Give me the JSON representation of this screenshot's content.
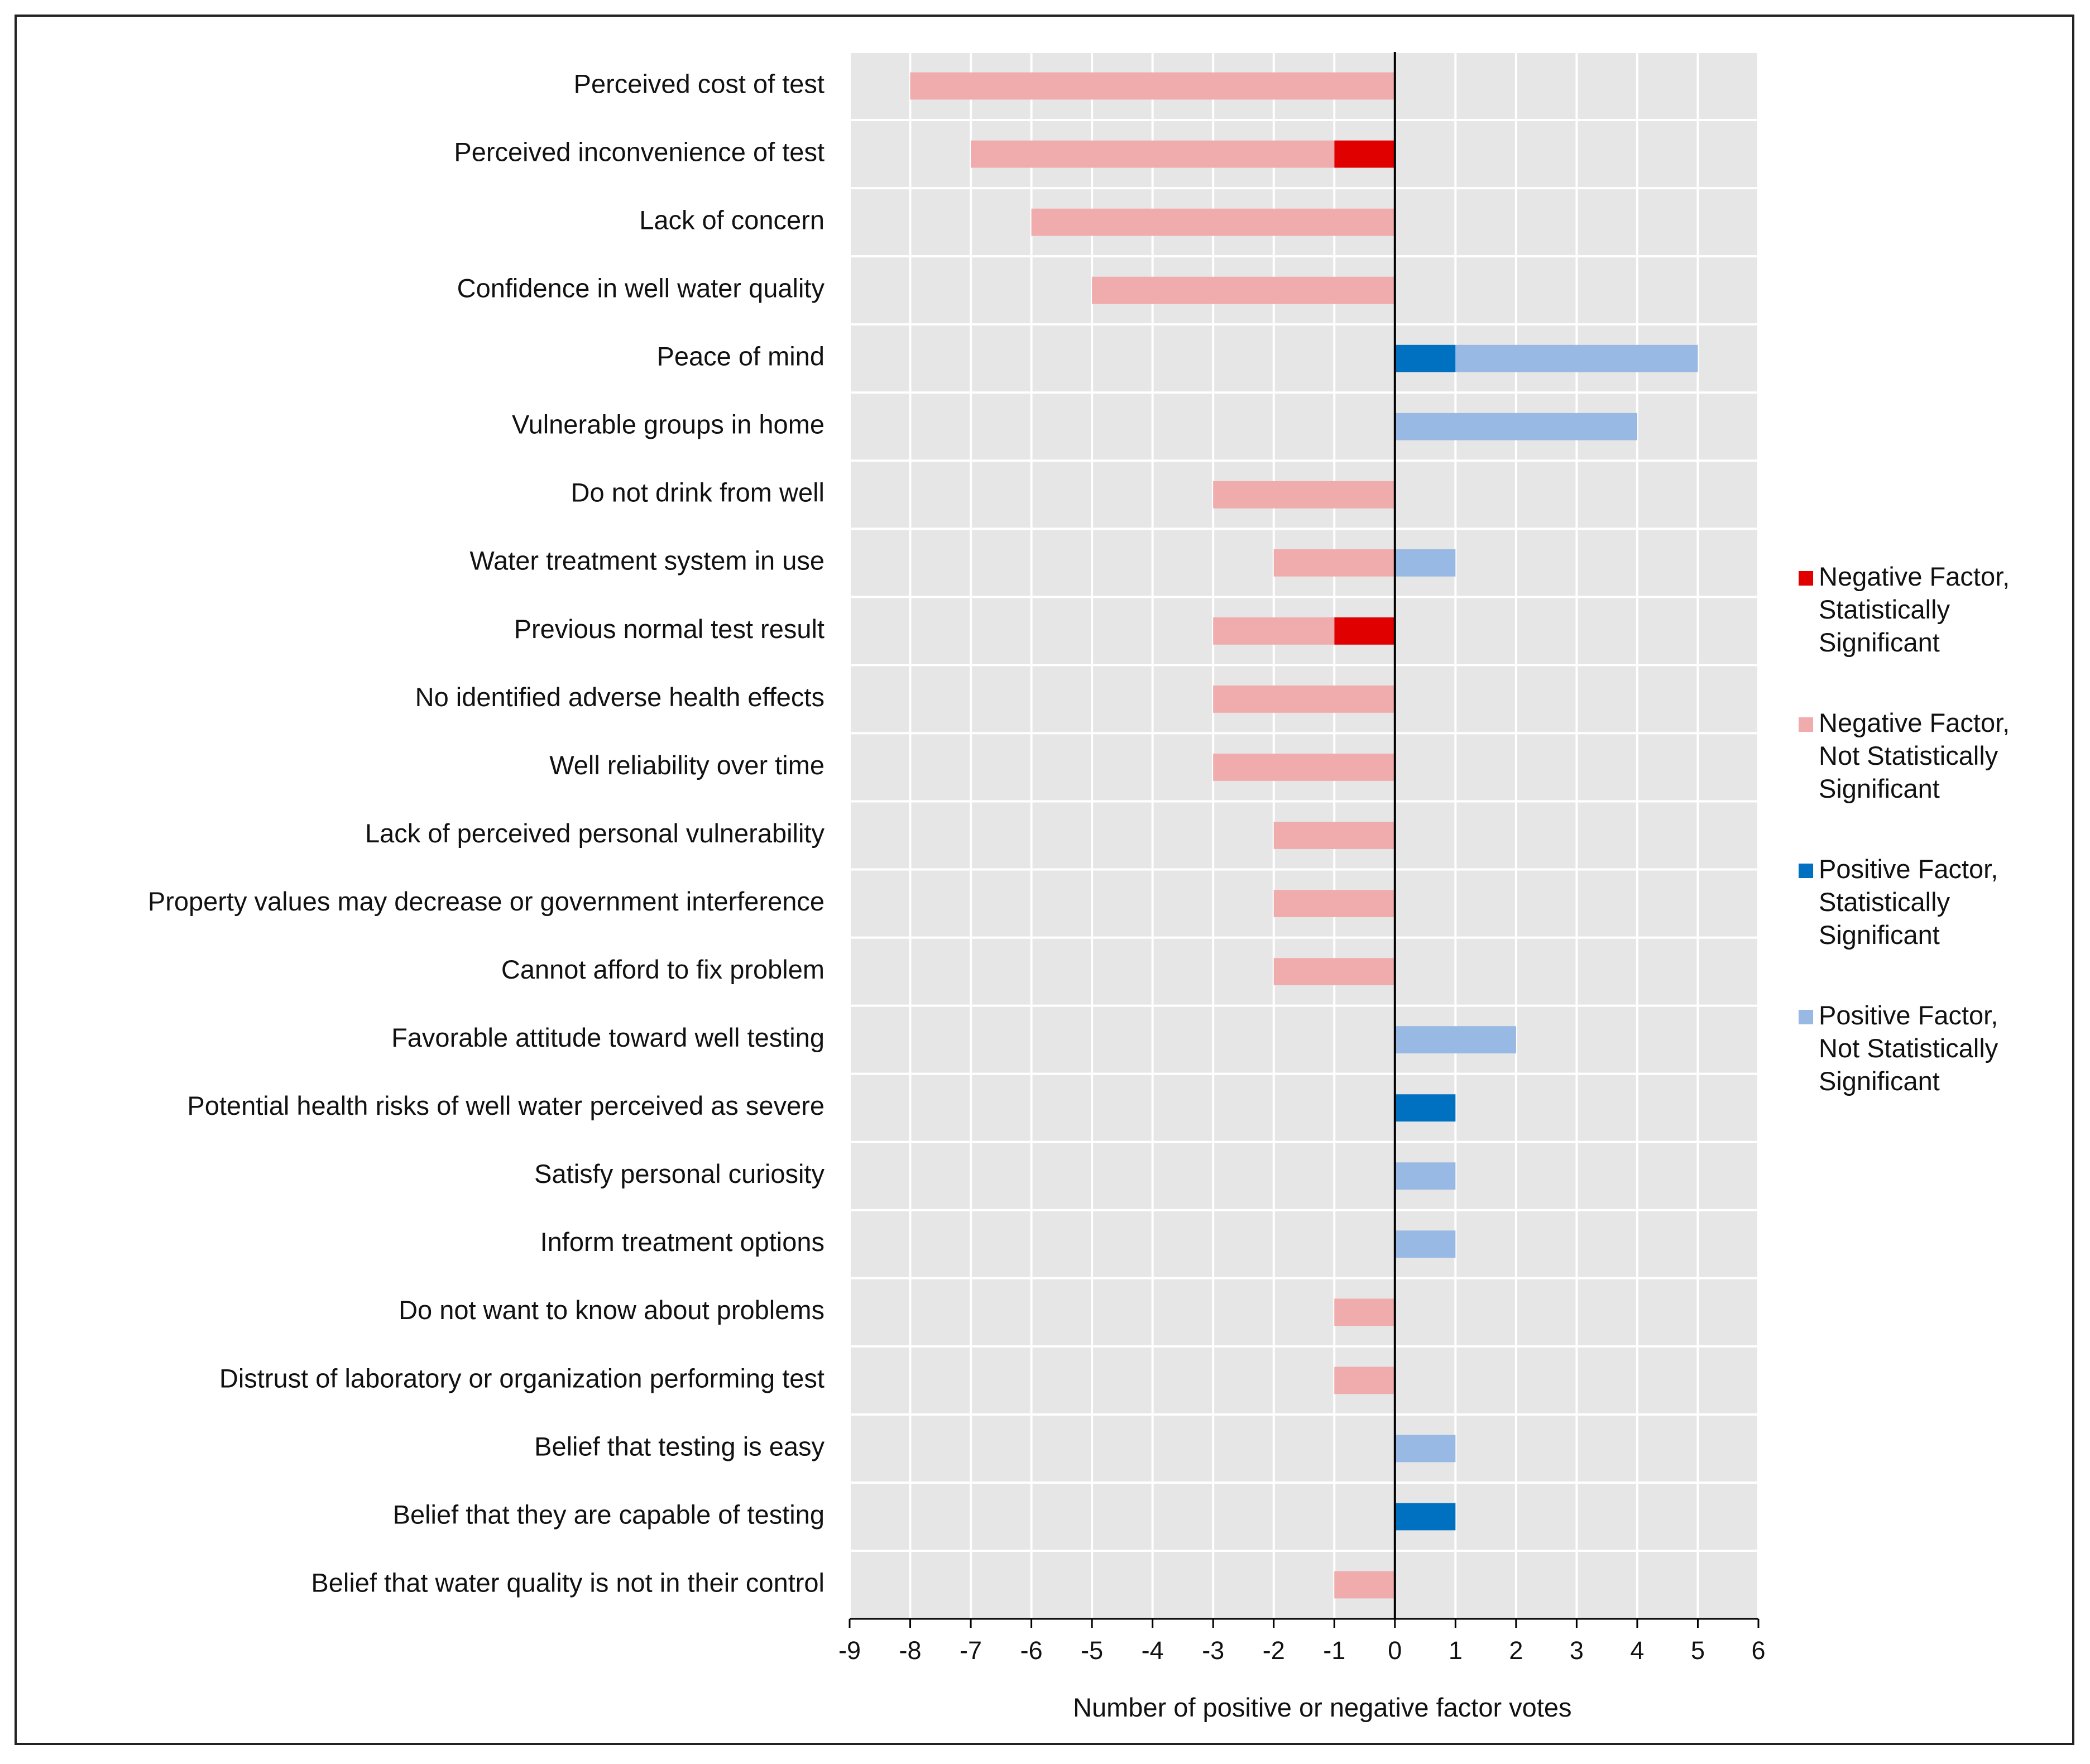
{
  "chart_data": {
    "type": "bar",
    "orientation": "horizontal",
    "stacked": true,
    "title": "",
    "xlabel": "Number of positive or negative factor votes",
    "ylabel": "",
    "xlim": [
      -9,
      6
    ],
    "xticks": [
      -9,
      -8,
      -7,
      -6,
      -5,
      -4,
      -3,
      -2,
      -1,
      0,
      1,
      2,
      3,
      4,
      5,
      6
    ],
    "grid": true,
    "legend_position": "right",
    "categories": [
      "Perceived cost of test",
      "Perceived inconvenience of test",
      "Lack of concern",
      "Confidence in well water quality",
      "Peace of mind",
      "Vulnerable groups in home",
      "Do not drink from well",
      "Water treatment system in use",
      "Previous normal test result",
      "No identified adverse health effects",
      "Well reliability over time",
      "Lack of perceived personal vulnerability",
      "Property values may decrease or government interference",
      "Cannot afford to fix problem",
      "Favorable attitude toward well testing",
      "Potential health risks of well water perceived as severe",
      "Satisfy personal curiosity",
      "Inform treatment options",
      "Do not want to know about problems",
      "Distrust of laboratory or organization performing test",
      "Belief that testing is easy",
      "Belief that they are capable of testing",
      "Belief that water quality is not in their control"
    ],
    "series": [
      {
        "name": "Negative Factor, Statistically Significant",
        "legend_lines": [
          "Negative Factor,",
          "Statistically",
          "Significant"
        ],
        "color": "#e00000",
        "values": [
          0,
          -1,
          0,
          0,
          0,
          0,
          0,
          0,
          -1,
          0,
          0,
          0,
          0,
          0,
          0,
          0,
          0,
          0,
          0,
          0,
          0,
          0,
          0
        ]
      },
      {
        "name": "Negative Factor, Not Statistically Significant",
        "legend_lines": [
          "Negative Factor,",
          "Not Statistically",
          "Significant"
        ],
        "color": "#f0acac",
        "values": [
          -8,
          -6,
          -6,
          -5,
          0,
          0,
          -3,
          -2,
          -2,
          -3,
          -3,
          -2,
          -2,
          -2,
          0,
          0,
          0,
          0,
          -1,
          -1,
          0,
          0,
          -1
        ]
      },
      {
        "name": "Positive Factor, Statistically Significant",
        "legend_lines": [
          "Positive Factor,",
          "Statistically",
          "Significant"
        ],
        "color": "#0070c0",
        "values": [
          0,
          0,
          0,
          0,
          1,
          0,
          0,
          0,
          0,
          0,
          0,
          0,
          0,
          0,
          0,
          1,
          0,
          0,
          0,
          0,
          0,
          1,
          0
        ]
      },
      {
        "name": "Positive Factor, Not Statistically Significant",
        "legend_lines": [
          "Positive Factor,",
          "Not Statistically",
          "Significant"
        ],
        "color": "#98b9e3",
        "values": [
          0,
          0,
          0,
          0,
          4,
          4,
          0,
          1,
          0,
          0,
          0,
          0,
          0,
          0,
          2,
          0,
          1,
          1,
          0,
          0,
          1,
          0,
          0
        ]
      }
    ]
  }
}
